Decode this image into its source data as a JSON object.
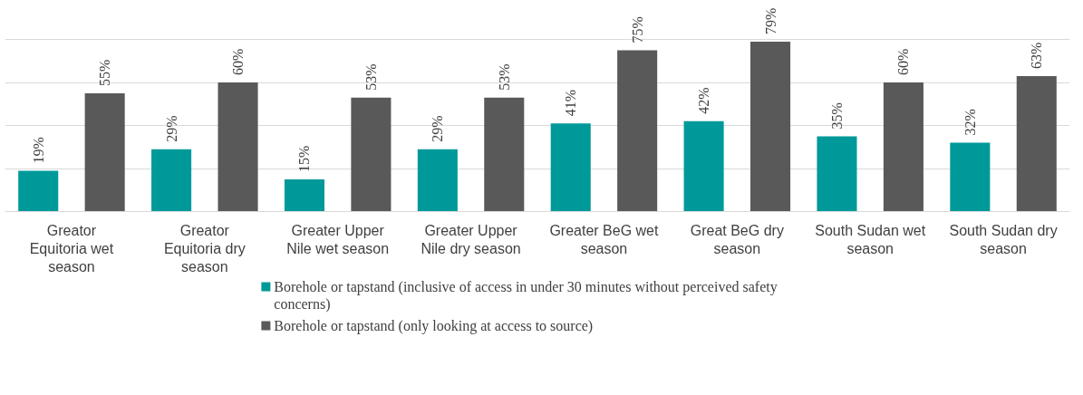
{
  "chart_data": {
    "type": "bar",
    "categories": [
      "Greator Equitoria wet season",
      "Greator Equitoria dry season",
      "Greater Upper Nile wet season",
      "Greater Upper Nile dry season",
      "Greater BeG wet season",
      "Great BeG dry season",
      "South Sudan wet season",
      "South Sudan dry season"
    ],
    "series": [
      {
        "name": "Borehole or tapstand (inclusive of access in under 30 minutes without perceived safety concerns)",
        "color": "#009999",
        "values": [
          19,
          29,
          15,
          29,
          41,
          42,
          35,
          32
        ],
        "value_labels": [
          "19%",
          "29%",
          "15%",
          "29%",
          "41%",
          "42%",
          "35%",
          "32%"
        ]
      },
      {
        "name": "Borehole or tapstand (only looking at access to source)",
        "color": "#595959",
        "values": [
          55,
          60,
          53,
          53,
          75,
          79,
          60,
          63
        ],
        "value_labels": [
          "55%",
          "60%",
          "53%",
          "53%",
          "75%",
          "79%",
          "60%",
          "63%"
        ]
      }
    ],
    "grid": "y",
    "legend": "bottom",
    "tick_labels": "x"
  }
}
